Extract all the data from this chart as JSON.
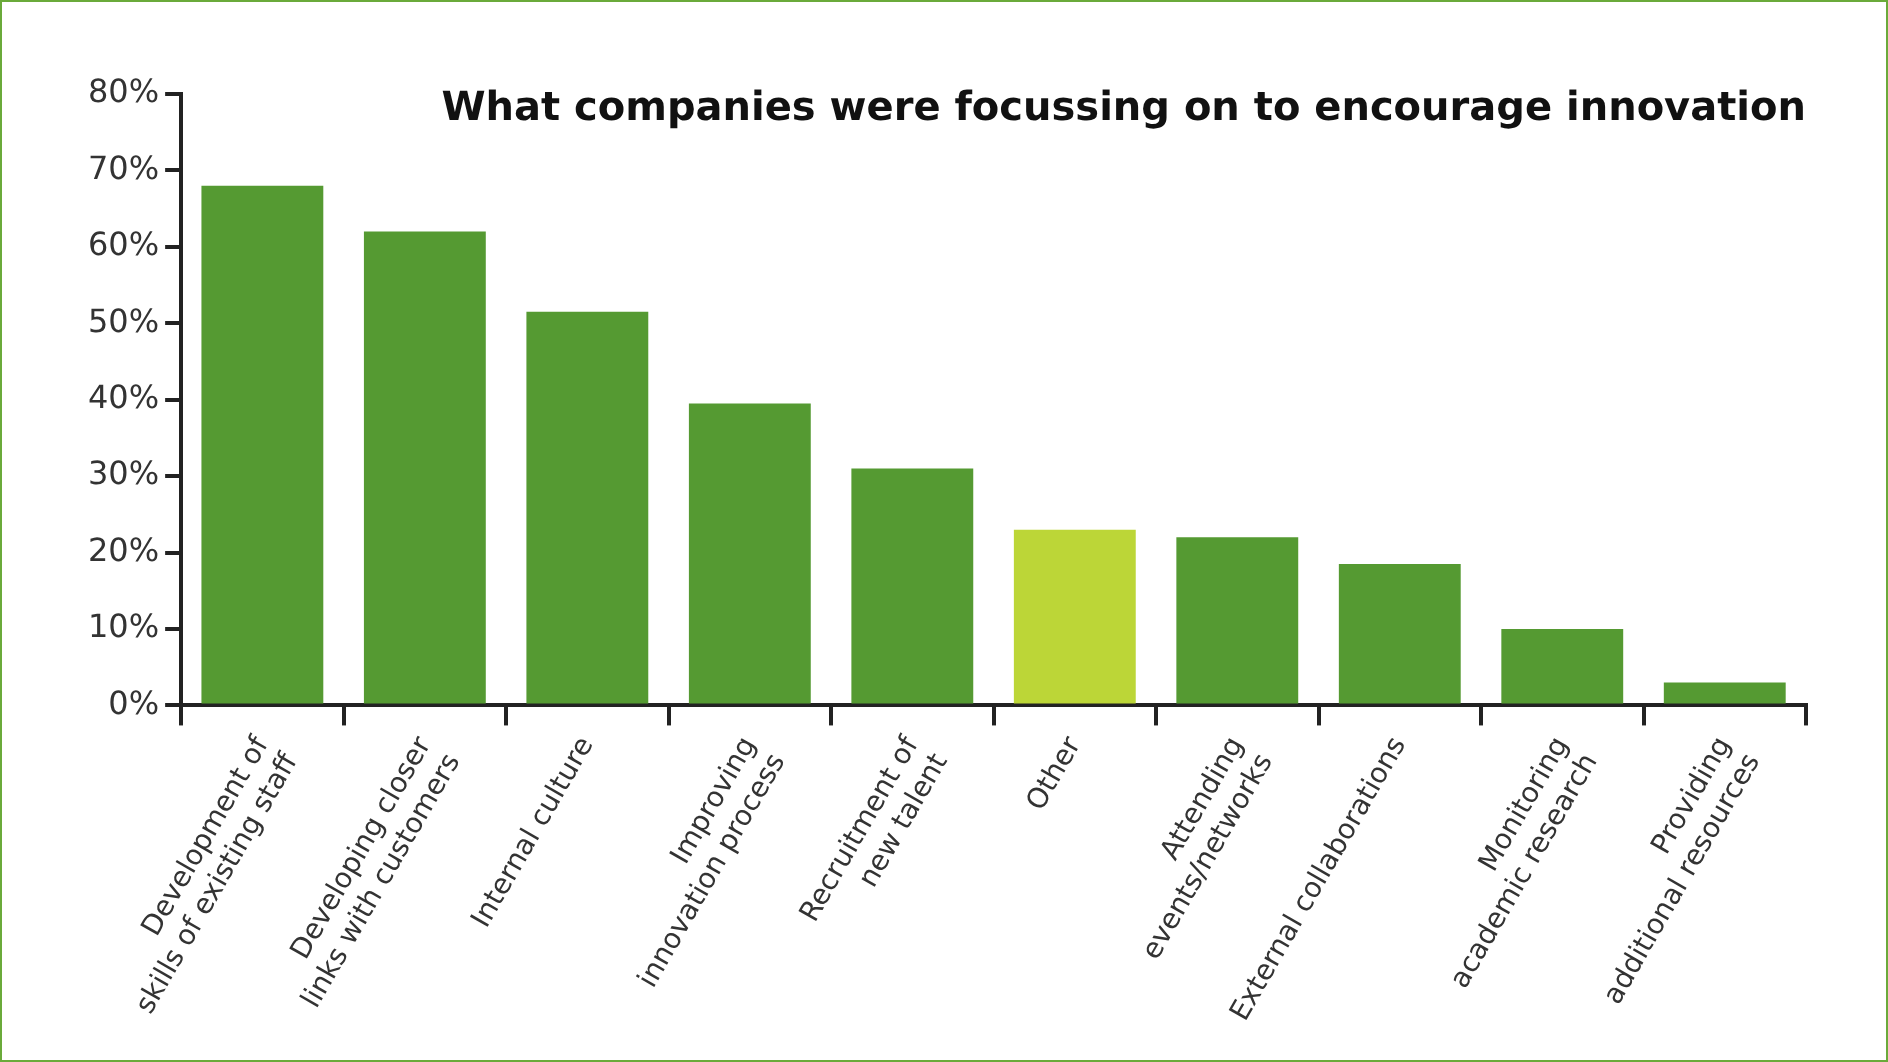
{
  "chart_data": {
    "type": "bar",
    "title": "What companies were focussing on to encourage innovation",
    "categories": [
      "Development of\nskills of existing staff",
      "Developing closer\nlinks with customers",
      "Internal culture",
      "Improving\ninnovation process",
      "Recruitment of\nnew talent",
      "Other",
      "Attending\nevents/networks",
      "External collaborations",
      "Monitoring\nacademic research",
      "Providing\nadditional resources"
    ],
    "values": [
      68,
      62,
      51.5,
      39.5,
      31,
      23,
      22,
      18.5,
      10,
      3
    ],
    "colors": [
      "#559a32",
      "#559a32",
      "#559a32",
      "#559a32",
      "#559a32",
      "#bcd637",
      "#559a32",
      "#559a32",
      "#559a32",
      "#559a32"
    ],
    "ylim": [
      0,
      80
    ],
    "yticks": [
      {
        "value": 0,
        "label": "0%"
      },
      {
        "value": 10,
        "label": "10%"
      },
      {
        "value": 20,
        "label": "20%"
      },
      {
        "value": 30,
        "label": "30%"
      },
      {
        "value": 40,
        "label": "40%"
      },
      {
        "value": 50,
        "label": "50%"
      },
      {
        "value": 60,
        "label": "60%"
      },
      {
        "value": 70,
        "label": "70%"
      },
      {
        "value": 80,
        "label": "80%"
      }
    ],
    "grid": false,
    "legend": false
  }
}
